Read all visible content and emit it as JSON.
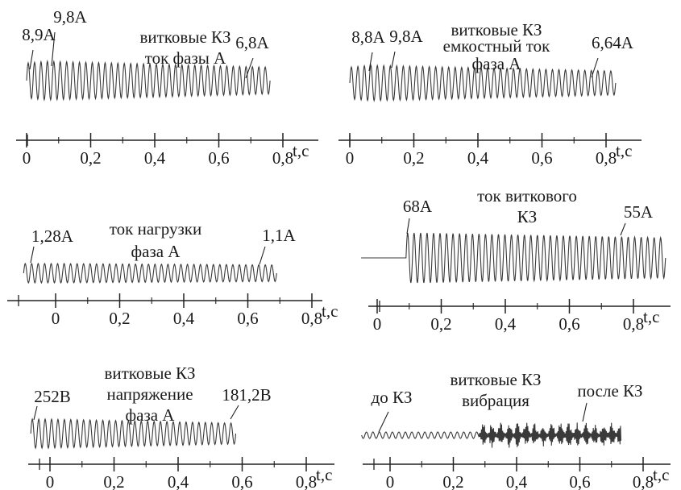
{
  "chart_data": [
    {
      "type": "line",
      "title": "",
      "xlabel": "t,c",
      "xlim": [
        0,
        0.8
      ],
      "x_ticks": [
        "0",
        "0,2",
        "0,4",
        "0,6",
        "0,8"
      ],
      "signal": {
        "t_start": 0,
        "t_end": 0.76,
        "cycles": 38,
        "amp_start": 8.9,
        "amp_peak": 9.8,
        "amp_end": 6.8
      },
      "annotations": [
        {
          "text": "8,9A",
          "t": 0.02
        },
        {
          "text": "9,8A",
          "t": 0.08
        },
        {
          "text": "витковые КЗ",
          "t": null
        },
        {
          "text": "ток фазы А",
          "t": null
        },
        {
          "text": "6,8A",
          "t": 0.7
        }
      ]
    },
    {
      "type": "line",
      "title": "",
      "xlabel": "t,c",
      "xlim": [
        0,
        0.8
      ],
      "x_ticks": [
        "0",
        "0,2",
        "0,4",
        "0,6",
        "0,8"
      ],
      "signal": {
        "t_start": 0,
        "t_end": 0.83,
        "cycles": 41,
        "amp_start": 8.8,
        "amp_peak": 9.8,
        "amp_end": 6.64
      },
      "annotations": [
        {
          "text": "8,8A",
          "t": 0.06
        },
        {
          "text": "9,8A",
          "t": 0.13
        },
        {
          "text": "витковые КЗ",
          "t": null
        },
        {
          "text": "емкостный ток",
          "t": null
        },
        {
          "text": "фаза А",
          "t": null
        },
        {
          "text": "6,64A",
          "t": 0.75
        }
      ]
    },
    {
      "type": "line",
      "title": "",
      "xlabel": "t,c",
      "xlim": [
        0,
        0.8
      ],
      "x_ticks": [
        "0",
        "0,2",
        "0,4",
        "0,6",
        "0,8"
      ],
      "signal": {
        "t_start": -0.1,
        "t_end": 0.69,
        "cycles": 39,
        "amp_start": 1.28,
        "amp_peak": 1.28,
        "amp_end": 1.1
      },
      "annotations": [
        {
          "text": "1,28A",
          "t": -0.08
        },
        {
          "text": "ток нагрузки",
          "t": null
        },
        {
          "text": "фаза А",
          "t": null
        },
        {
          "text": "1,1A",
          "t": 0.64
        }
      ]
    },
    {
      "type": "line",
      "title": "",
      "xlabel": "t,c",
      "xlim": [
        0,
        0.8
      ],
      "x_ticks": [
        "0",
        "0,2",
        "0,4",
        "0,6",
        "0,8"
      ],
      "signal": {
        "t_start": 0.09,
        "t_end": 0.9,
        "cycles": 40,
        "amp_start": 68,
        "amp_peak": 68,
        "amp_end": 55,
        "baseline_from": -0.05
      },
      "annotations": [
        {
          "text": "68A",
          "t": 0.1
        },
        {
          "text": "ток виткового",
          "t": null
        },
        {
          "text": "КЗ",
          "t": null
        },
        {
          "text": "55A",
          "t": 0.74
        }
      ]
    },
    {
      "type": "line",
      "title": "",
      "xlabel": "t,c",
      "xlim": [
        0,
        0.8
      ],
      "x_ticks": [
        "0",
        "0,2",
        "0,4",
        "0,6",
        "0,8"
      ],
      "signal": {
        "t_start": -0.06,
        "t_end": 0.58,
        "cycles": 32,
        "amp_start": 252,
        "amp_peak": 252,
        "amp_end": 181.2
      },
      "annotations": [
        {
          "text": "252B",
          "t": -0.05
        },
        {
          "text": "витковые КЗ",
          "t": null
        },
        {
          "text": "напряжение",
          "t": null
        },
        {
          "text": "фаза А",
          "t": null
        },
        {
          "text": "181,2B",
          "t": 0.56
        }
      ]
    },
    {
      "type": "line",
      "title": "",
      "xlabel": "t,c",
      "xlim": [
        0,
        0.8
      ],
      "x_ticks": [
        "0",
        "0,2",
        "0,4",
        "0,6",
        "0,8"
      ],
      "signal": {
        "t_start": -0.09,
        "t_end": 0.73,
        "fault_t": 0.28,
        "kind": "vibration"
      },
      "annotations": [
        {
          "text": "до КЗ",
          "t": -0.02
        },
        {
          "text": "витковые КЗ",
          "t": null
        },
        {
          "text": "вибрация",
          "t": null
        },
        {
          "text": "после КЗ",
          "t": 0.62
        }
      ]
    }
  ]
}
